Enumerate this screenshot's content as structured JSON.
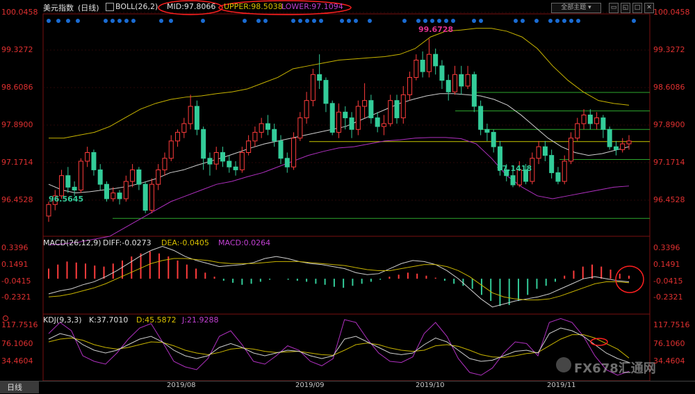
{
  "header": {
    "symbol": "美元指数",
    "period": "(日线)",
    "indicator": "BOLL(26,2)",
    "mid": "MID:97.8066",
    "upper": "UPPER:98.5038",
    "lower": "LOWER:97.1094",
    "theme_button": "全部主题"
  },
  "price_axis": [
    "100.0458",
    "99.3272",
    "98.6086",
    "97.8900",
    "97.1714",
    "96.4528"
  ],
  "annotations": {
    "high": "99.6728",
    "low_mid": "97.1418",
    "low_left": "96.5645"
  },
  "macd": {
    "title": "MACD(26,12,9)",
    "diff": "DIFF:-0.0273",
    "dea": "DEA:-0.0405",
    "macd": "MACD:0.0264",
    "axis": [
      "0.3396",
      "0.1491",
      "-0.0415",
      "-0.2321"
    ]
  },
  "kdj": {
    "title": "KDJ(9,3,3)",
    "k": "K:37.7010",
    "d": "D:45.5872",
    "j": "J:21.9288",
    "axis": [
      "117.7516",
      "76.1060",
      "34.4604"
    ]
  },
  "dates": [
    "2019/08",
    "2019/09",
    "2019/10",
    "2019/11"
  ],
  "bottom": {
    "period_tab": "日线"
  },
  "watermark": "FX678汇通网",
  "colors": {
    "up": "#ff3c3c",
    "down": "#33cc99",
    "mid": "#d0d0d0",
    "upper": "#c8b400",
    "lower": "#b030c0",
    "axis_text": "#e03030",
    "support": "#2ea82e",
    "highlight": "#ff2020"
  },
  "chart_data": {
    "type": "line",
    "price": {
      "ylim": [
        96.25,
        100.1
      ],
      "candles": [
        [
          96.6,
          96.8,
          96.5,
          96.85
        ],
        [
          96.8,
          96.95,
          96.7,
          97.05
        ],
        [
          96.95,
          97.3,
          96.9,
          97.4
        ],
        [
          97.3,
          97.1,
          97.0,
          97.45
        ],
        [
          97.1,
          97.05,
          96.95,
          97.2
        ],
        [
          97.05,
          97.55,
          97.0,
          97.6
        ],
        [
          97.55,
          97.7,
          97.45,
          97.8
        ],
        [
          97.7,
          97.4,
          97.3,
          97.75
        ],
        [
          97.4,
          97.15,
          97.05,
          97.5
        ],
        [
          97.15,
          96.9,
          96.85,
          97.2
        ],
        [
          96.9,
          97.0,
          96.85,
          97.1
        ],
        [
          97.0,
          96.9,
          96.8,
          97.05
        ],
        [
          96.9,
          97.2,
          96.85,
          97.3
        ],
        [
          97.2,
          97.4,
          97.1,
          97.5
        ],
        [
          97.4,
          97.15,
          97.05,
          97.45
        ],
        [
          97.15,
          96.7,
          96.65,
          97.2
        ],
        [
          96.7,
          97.15,
          96.65,
          97.25
        ],
        [
          97.15,
          97.4,
          97.05,
          97.5
        ],
        [
          97.4,
          97.6,
          97.3,
          97.7
        ],
        [
          97.6,
          97.9,
          97.55,
          98.0
        ],
        [
          97.9,
          98.05,
          97.8,
          98.1
        ],
        [
          98.05,
          98.2,
          97.95,
          98.3
        ],
        [
          98.2,
          98.5,
          98.1,
          98.7
        ],
        [
          98.5,
          98.1,
          98.0,
          98.6
        ],
        [
          98.1,
          97.6,
          97.4,
          98.15
        ],
        [
          97.6,
          97.5,
          97.3,
          97.7
        ],
        [
          97.5,
          97.7,
          97.4,
          97.8
        ],
        [
          97.7,
          97.55,
          97.45,
          97.8
        ],
        [
          97.55,
          97.45,
          97.35,
          97.65
        ],
        [
          97.45,
          97.4,
          97.3,
          97.55
        ],
        [
          97.4,
          97.7,
          97.35,
          97.8
        ],
        [
          97.7,
          97.9,
          97.65,
          98.0
        ],
        [
          97.9,
          98.05,
          97.8,
          98.15
        ],
        [
          98.05,
          98.2,
          97.95,
          98.3
        ],
        [
          98.2,
          98.1,
          98.0,
          98.35
        ],
        [
          98.1,
          97.9,
          97.8,
          98.2
        ],
        [
          97.9,
          97.6,
          97.5,
          98.0
        ],
        [
          97.6,
          97.45,
          97.35,
          97.7
        ],
        [
          97.45,
          97.95,
          97.4,
          98.05
        ],
        [
          97.95,
          98.3,
          97.9,
          98.4
        ],
        [
          98.3,
          98.6,
          98.2,
          98.75
        ],
        [
          98.6,
          99.05,
          98.5,
          99.15
        ],
        [
          99.05,
          98.95,
          98.8,
          99.4
        ],
        [
          98.95,
          98.55,
          98.4,
          99.0
        ],
        [
          98.55,
          98.05,
          98.0,
          98.6
        ],
        [
          98.05,
          98.4,
          97.95,
          98.55
        ],
        [
          98.4,
          98.3,
          98.1,
          98.5
        ],
        [
          98.3,
          98.1,
          97.95,
          98.4
        ],
        [
          98.1,
          98.5,
          98.0,
          98.6
        ],
        [
          98.5,
          98.6,
          98.3,
          98.9
        ],
        [
          98.6,
          98.3,
          98.2,
          98.7
        ],
        [
          98.3,
          98.15,
          98.05,
          98.4
        ],
        [
          98.15,
          98.2,
          98.0,
          98.35
        ],
        [
          98.2,
          98.6,
          98.15,
          98.7
        ],
        [
          98.6,
          98.3,
          98.2,
          98.7
        ],
        [
          98.3,
          98.7,
          98.2,
          98.85
        ],
        [
          98.7,
          99.0,
          98.6,
          99.1
        ],
        [
          99.0,
          99.3,
          98.95,
          99.4
        ],
        [
          99.3,
          99.1,
          99.0,
          99.45
        ],
        [
          99.1,
          99.4,
          99.0,
          99.67
        ],
        [
          99.4,
          99.2,
          99.05,
          99.5
        ],
        [
          99.2,
          98.95,
          98.8,
          99.3
        ],
        [
          98.95,
          98.75,
          98.6,
          99.05
        ],
        [
          98.75,
          99.05,
          98.7,
          99.2
        ],
        [
          99.05,
          98.85,
          98.7,
          99.2
        ],
        [
          98.85,
          99.05,
          98.8,
          99.2
        ],
        [
          99.05,
          98.5,
          98.4,
          99.1
        ],
        [
          98.5,
          98.1,
          98.0,
          98.6
        ],
        [
          98.1,
          98.05,
          97.9,
          98.2
        ],
        [
          98.05,
          97.8,
          97.7,
          98.1
        ],
        [
          97.8,
          97.4,
          97.3,
          97.9
        ],
        [
          97.4,
          97.3,
          97.2,
          97.5
        ],
        [
          97.3,
          97.14,
          97.1,
          97.45
        ],
        [
          97.14,
          97.4,
          97.1,
          97.55
        ],
        [
          97.4,
          97.2,
          97.15,
          97.5
        ],
        [
          97.2,
          97.6,
          97.15,
          97.7
        ],
        [
          97.6,
          97.8,
          97.5,
          97.9
        ],
        [
          97.8,
          97.65,
          97.55,
          97.9
        ],
        [
          97.65,
          97.35,
          97.25,
          97.75
        ],
        [
          97.35,
          97.2,
          97.15,
          97.45
        ],
        [
          97.2,
          97.55,
          97.15,
          97.65
        ],
        [
          97.55,
          97.95,
          97.5,
          98.05
        ],
        [
          97.95,
          98.2,
          97.9,
          98.3
        ],
        [
          98.2,
          98.35,
          98.1,
          98.45
        ],
        [
          98.35,
          98.2,
          98.1,
          98.45
        ],
        [
          98.2,
          98.3,
          98.1,
          98.4
        ],
        [
          98.3,
          98.1,
          97.95,
          98.35
        ],
        [
          98.1,
          97.8,
          97.75,
          98.15
        ],
        [
          97.8,
          97.75,
          97.65,
          97.9
        ],
        [
          97.75,
          97.85,
          97.7,
          97.95
        ],
        [
          97.85,
          97.9,
          97.75,
          98.0
        ]
      ],
      "mid": [
        97.15,
        97.05,
        97.0,
        97.02,
        97.05,
        97.08,
        97.12,
        97.18,
        97.25,
        97.35,
        97.4,
        97.48,
        97.55,
        97.62,
        97.7,
        97.78,
        97.85,
        97.9,
        97.95,
        98.0,
        98.05,
        98.1,
        98.15,
        98.25,
        98.35,
        98.45,
        98.55,
        98.62,
        98.68,
        98.72,
        98.72,
        98.7,
        98.68,
        98.62,
        98.52,
        98.35,
        98.15,
        97.95,
        97.8,
        97.7,
        97.65,
        97.68,
        97.74,
        97.8
      ],
      "upper": [
        97.95,
        97.95,
        98.0,
        98.05,
        98.15,
        98.3,
        98.45,
        98.55,
        98.62,
        98.66,
        98.68,
        98.72,
        98.75,
        98.8,
        98.9,
        99.0,
        99.15,
        99.2,
        99.25,
        99.3,
        99.32,
        99.34,
        99.36,
        99.4,
        99.5,
        99.7,
        99.8,
        99.82,
        99.85,
        99.85,
        99.8,
        99.7,
        99.5,
        99.2,
        98.95,
        98.75,
        98.6,
        98.55,
        98.52
      ],
      "lower": [
        96.1,
        96.12,
        96.15,
        96.2,
        96.25,
        96.4,
        96.55,
        96.7,
        96.85,
        96.95,
        97.05,
        97.15,
        97.2,
        97.28,
        97.35,
        97.45,
        97.55,
        97.65,
        97.72,
        97.78,
        97.8,
        97.85,
        97.9,
        97.92,
        97.95,
        97.96,
        97.96,
        97.94,
        97.85,
        97.6,
        97.3,
        97.1,
        96.95,
        96.9,
        96.95,
        97.0,
        97.05,
        97.1,
        97.12
      ],
      "hlines": [
        96.56,
        97.89,
        98.42,
        98.74,
        98.1,
        97.58
      ]
    },
    "macd_data": {
      "ylim": [
        -0.35,
        0.42
      ],
      "hist": [
        0.1,
        0.14,
        0.17,
        0.16,
        0.15,
        0.13,
        0.12,
        0.15,
        0.18,
        0.22,
        0.25,
        0.27,
        0.25,
        0.22,
        0.18,
        0.14,
        0.1,
        0.06,
        0.02,
        -0.02,
        -0.04,
        -0.06,
        -0.05,
        -0.03,
        -0.01,
        0.0,
        -0.01,
        -0.02,
        -0.03,
        -0.05,
        -0.06,
        -0.08,
        -0.09,
        -0.07,
        -0.05,
        -0.03,
        -0.01,
        0.02,
        0.04,
        0.06,
        0.05,
        0.03,
        0.01,
        -0.02,
        -0.05,
        -0.07,
        -0.1,
        -0.16,
        -0.22,
        -0.27,
        -0.26,
        -0.22,
        -0.16,
        -0.1,
        -0.07,
        -0.03,
        0.03,
        0.08,
        0.12,
        0.14,
        0.12,
        0.09,
        0.05,
        0.03
      ],
      "diff": [
        -0.15,
        -0.12,
        -0.1,
        -0.06,
        -0.03,
        0.02,
        0.08,
        0.15,
        0.22,
        0.28,
        0.32,
        0.28,
        0.22,
        0.18,
        0.15,
        0.12,
        0.13,
        0.14,
        0.16,
        0.2,
        0.22,
        0.2,
        0.17,
        0.15,
        0.14,
        0.12,
        0.1,
        0.06,
        0.04,
        0.05,
        0.1,
        0.15,
        0.18,
        0.17,
        0.14,
        0.08,
        0.0,
        -0.1,
        -0.2,
        -0.28,
        -0.25,
        -0.22,
        -0.2,
        -0.18,
        -0.15,
        -0.1,
        -0.05,
        0.0,
        0.02,
        0.0,
        -0.02,
        -0.03
      ],
      "dea": [
        -0.18,
        -0.17,
        -0.15,
        -0.12,
        -0.09,
        -0.05,
        0.0,
        0.05,
        0.1,
        0.15,
        0.18,
        0.2,
        0.2,
        0.19,
        0.18,
        0.16,
        0.15,
        0.15,
        0.15,
        0.16,
        0.17,
        0.17,
        0.17,
        0.16,
        0.15,
        0.14,
        0.13,
        0.11,
        0.09,
        0.08,
        0.08,
        0.1,
        0.12,
        0.14,
        0.14,
        0.12,
        0.08,
        0.02,
        -0.06,
        -0.14,
        -0.18,
        -0.2,
        -0.21,
        -0.21,
        -0.2,
        -0.17,
        -0.13,
        -0.09,
        -0.05,
        -0.03,
        -0.03,
        -0.04
      ]
    },
    "kdj_data": {
      "ylim": [
        5,
        125
      ],
      "k": [
        80,
        90,
        85,
        70,
        60,
        55,
        60,
        70,
        80,
        85,
        75,
        60,
        50,
        45,
        50,
        65,
        72,
        65,
        55,
        50,
        55,
        60,
        58,
        50,
        45,
        50,
        80,
        85,
        75,
        65,
        55,
        52,
        55,
        70,
        82,
        75,
        60,
        45,
        40,
        42,
        50,
        58,
        60,
        55,
        90,
        100,
        95,
        85,
        70,
        55,
        45,
        38
      ],
      "d": [
        75,
        80,
        82,
        78,
        70,
        65,
        62,
        65,
        70,
        75,
        74,
        68,
        60,
        55,
        52,
        56,
        62,
        64,
        62,
        58,
        56,
        57,
        58,
        55,
        52,
        51,
        60,
        70,
        73,
        70,
        64,
        60,
        58,
        60,
        68,
        70,
        67,
        60,
        52,
        48,
        47,
        50,
        54,
        56,
        68,
        80,
        88,
        88,
        82,
        72,
        62,
        46
      ],
      "j": [
        90,
        110,
        95,
        50,
        40,
        35,
        55,
        80,
        100,
        108,
        75,
        40,
        30,
        25,
        45,
        85,
        95,
        70,
        40,
        35,
        50,
        68,
        60,
        40,
        32,
        45,
        115,
        110,
        80,
        55,
        40,
        38,
        48,
        90,
        110,
        85,
        45,
        20,
        15,
        28,
        55,
        75,
        72,
        50,
        110,
        117,
        110,
        85,
        50,
        25,
        15,
        22
      ]
    }
  }
}
